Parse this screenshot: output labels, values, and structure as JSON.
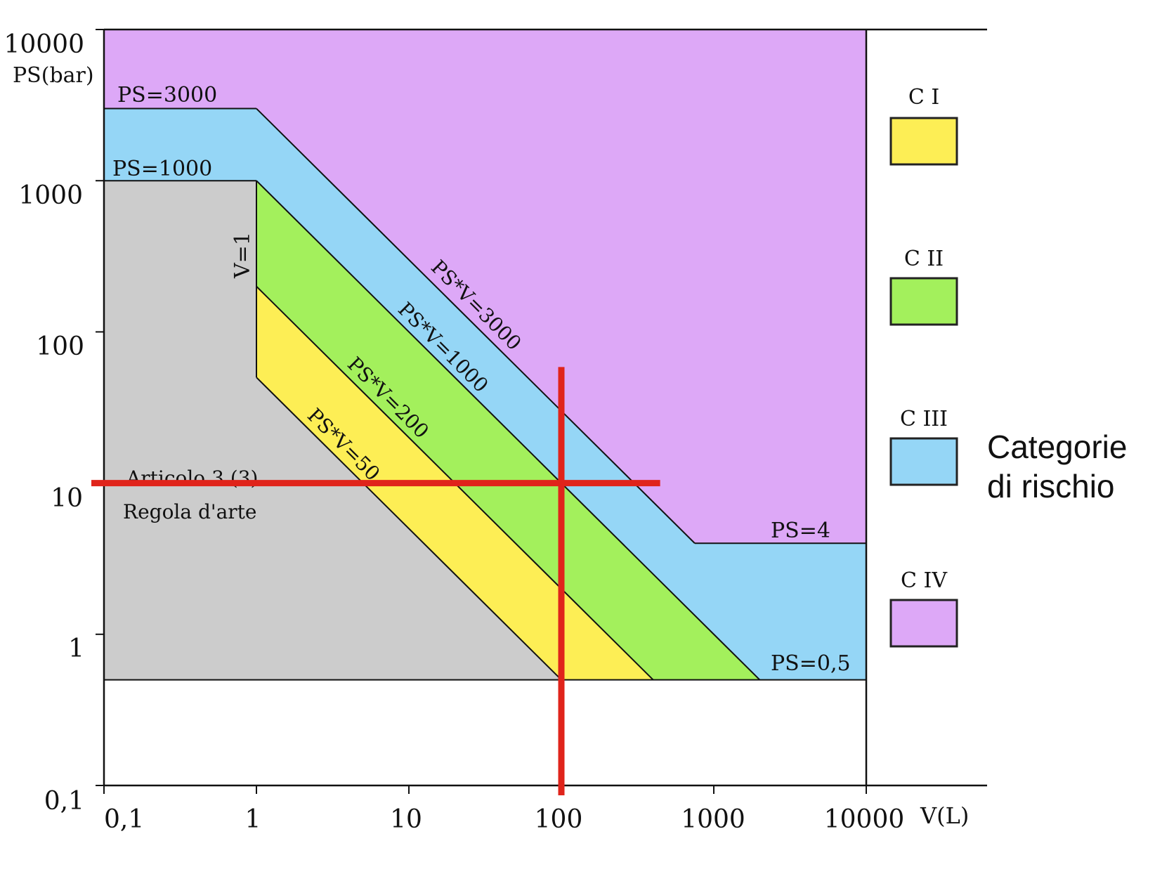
{
  "chart_data": {
    "type": "area",
    "title": "",
    "xlabel": "V(L)",
    "ylabel": "PS(bar)",
    "x_scale": "log",
    "y_scale": "log",
    "xlim": [
      0.1,
      10000
    ],
    "ylim": [
      0.1,
      10000
    ],
    "x_ticks": [
      "0,1",
      "1",
      "10",
      "100",
      "1000",
      "10000"
    ],
    "y_ticks": [
      "0,1",
      "1",
      "10",
      "100",
      "1000",
      "10000"
    ],
    "y_tick_values": [
      0.1,
      1,
      10,
      100,
      1000,
      10000
    ],
    "x_tick_values": [
      0.1,
      1,
      10,
      100,
      1000,
      10000
    ],
    "regions": [
      {
        "name": "Articolo 3 (3) Regola d'arte",
        "color": "#cccccc",
        "polygon": [
          [
            0.1,
            0.5
          ],
          [
            0.1,
            1000
          ],
          [
            1,
            1000
          ],
          [
            1,
            50
          ],
          [
            100,
            0.5
          ]
        ]
      },
      {
        "name": "C I",
        "color": "#fdee55",
        "polygon": [
          [
            1,
            50
          ],
          [
            1,
            200
          ],
          [
            400,
            0.5
          ],
          [
            100,
            0.5
          ]
        ]
      },
      {
        "name": "C II",
        "color": "#a3f05c",
        "polygon": [
          [
            1,
            200
          ],
          [
            1,
            1000
          ],
          [
            2000,
            0.5
          ],
          [
            400,
            0.5
          ]
        ]
      },
      {
        "name": "C III",
        "color": "#95d6f6",
        "polygon": [
          [
            0.1,
            1000
          ],
          [
            0.1,
            3000
          ],
          [
            1,
            3000
          ],
          [
            750,
            4
          ],
          [
            10000,
            4
          ],
          [
            10000,
            0.5
          ],
          [
            2000,
            0.5
          ],
          [
            1,
            1000
          ]
        ]
      },
      {
        "name": "C IV",
        "color": "#dda8f7",
        "polygon": [
          [
            0.1,
            3000
          ],
          [
            0.1,
            10000
          ],
          [
            10000,
            10000
          ],
          [
            10000,
            4
          ],
          [
            750,
            4
          ],
          [
            1,
            3000
          ]
        ]
      }
    ],
    "boundaries": [
      {
        "label": "PS=3000",
        "x": [
          0.1,
          1
        ],
        "y": [
          3000,
          3000
        ]
      },
      {
        "label": "PS=1000",
        "x": [
          0.1,
          1
        ],
        "y": [
          1000,
          1000
        ]
      },
      {
        "label": "PS=4",
        "x": [
          750,
          10000
        ],
        "y": [
          4,
          4
        ]
      },
      {
        "label": "PS=0,5",
        "x": [
          0.1,
          10000
        ],
        "y": [
          0.5,
          0.5
        ]
      },
      {
        "label": "V=1",
        "x": [
          1,
          1
        ],
        "y": [
          50,
          1000
        ]
      },
      {
        "label": "PS*V=3000",
        "x": [
          1,
          750
        ],
        "y": [
          3000,
          4
        ]
      },
      {
        "label": "PS*V=1000",
        "x": [
          1,
          2000
        ],
        "y": [
          1000,
          0.5
        ]
      },
      {
        "label": "PS*V=200",
        "x": [
          1,
          400
        ],
        "y": [
          200,
          0.5
        ]
      },
      {
        "label": "PS*V=50",
        "x": [
          1,
          100
        ],
        "y": [
          50,
          0.5
        ]
      }
    ],
    "boundary_labels": {
      "ps3000": "PS=3000",
      "ps1000": "PS=1000",
      "ps4": "PS=4",
      "ps05": "PS=0,5",
      "v1": "V=1",
      "psv3000": "PS*V=3000",
      "psv1000": "PS*V=1000",
      "psv200": "PS*V=200",
      "psv50": "PS*V=50"
    },
    "region_text": [
      "Articolo 3 (3)",
      "Regola d'arte"
    ],
    "marker": {
      "color": "#e0241b",
      "x": 100,
      "y": 10,
      "x_range": [
        0.1,
        400
      ],
      "y_range": [
        0.1,
        100
      ]
    },
    "legend": {
      "placement": "right",
      "items": [
        {
          "label": "C I",
          "color": "#fdee55"
        },
        {
          "label": "C II",
          "color": "#a3f05c"
        },
        {
          "label": "C III",
          "color": "#95d6f6"
        },
        {
          "label": "C IV",
          "color": "#dda8f7"
        }
      ]
    },
    "annotation": [
      "Categorie",
      "di rischio"
    ]
  }
}
